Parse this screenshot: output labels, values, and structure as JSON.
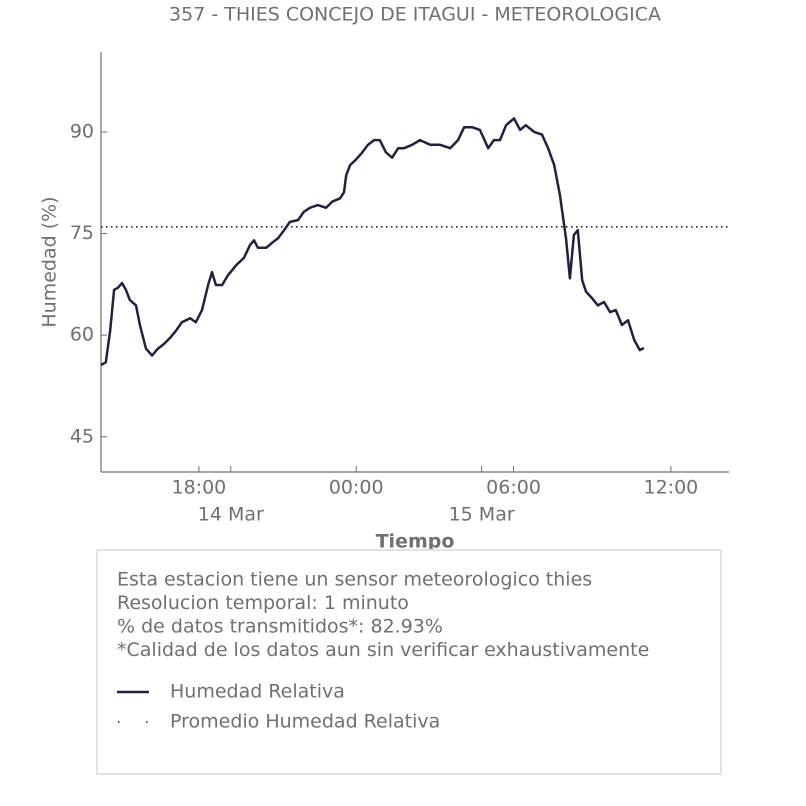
{
  "chart_data": {
    "type": "line",
    "title": "357 - THIES CONCEJO DE ITAGUI - METEOROLOGICA",
    "xlabel": "Tiempo",
    "ylabel": "Humedad (%)",
    "ylim": [
      39.8,
      101.8
    ],
    "yticks": [
      45,
      60,
      75,
      90
    ],
    "xlim": [
      "14 Mar 14:16",
      "15 Mar 14:13"
    ],
    "xticks": [
      {
        "value": "14 Mar 18:00",
        "label": "18:00"
      },
      {
        "value": "15 Mar 00:00",
        "label": "00:00"
      },
      {
        "value": "15 Mar 06:00",
        "label": "06:00"
      },
      {
        "value": "15 Mar 12:00",
        "label": "12:00"
      }
    ],
    "xdateticks": [
      {
        "value": "14 Mar 19:13",
        "label": "14 Mar"
      },
      {
        "value": "15 Mar 04:47",
        "label": "15 Mar"
      }
    ],
    "x": [
      "14 Mar 14:16",
      "14 Mar 14:27",
      "14 Mar 14:37",
      "14 Mar 14:46",
      "14 Mar 14:55",
      "14 Mar 15:04",
      "14 Mar 15:13",
      "14 Mar 15:22",
      "14 Mar 15:36",
      "14 Mar 15:45",
      "14 Mar 15:59",
      "14 Mar 16:13",
      "14 Mar 16:26",
      "14 Mar 16:40",
      "14 Mar 16:54",
      "14 Mar 17:08",
      "14 Mar 17:21",
      "14 Mar 17:40",
      "14 Mar 17:53",
      "14 Mar 18:07",
      "14 Mar 18:21",
      "14 Mar 18:30",
      "14 Mar 18:39",
      "14 Mar 18:53",
      "14 Mar 19:07",
      "14 Mar 19:25",
      "14 Mar 19:43",
      "14 Mar 19:57",
      "14 Mar 20:06",
      "14 Mar 20:15",
      "14 Mar 20:34",
      "14 Mar 20:47",
      "14 Mar 21:01",
      "14 Mar 21:15",
      "14 Mar 21:28",
      "14 Mar 21:47",
      "14 Mar 22:00",
      "14 Mar 22:14",
      "14 Mar 22:32",
      "14 Mar 22:51",
      "14 Mar 23:05",
      "14 Mar 23:23",
      "14 Mar 23:32",
      "14 Mar 23:37",
      "14 Mar 23:46",
      "14 Mar 23:59",
      "15 Mar 00:13",
      "15 Mar 00:27",
      "15 Mar 00:41",
      "15 Mar 00:54",
      "15 Mar 01:08",
      "15 Mar 01:22",
      "15 Mar 01:36",
      "15 Mar 01:49",
      "15 Mar 02:08",
      "15 Mar 02:26",
      "15 Mar 02:49",
      "15 Mar 03:12",
      "15 Mar 03:35",
      "15 Mar 03:53",
      "15 Mar 04:07",
      "15 Mar 04:25",
      "15 Mar 04:43",
      "15 Mar 05:02",
      "15 Mar 05:15",
      "15 Mar 05:29",
      "15 Mar 05:43",
      "15 Mar 06:01",
      "15 Mar 06:15",
      "15 Mar 06:28",
      "15 Mar 06:47",
      "15 Mar 07:05",
      "15 Mar 07:19",
      "15 Mar 07:33",
      "15 Mar 07:46",
      "15 Mar 08:00",
      "15 Mar 08:09",
      "15 Mar 08:18",
      "15 Mar 08:27",
      "15 Mar 08:37",
      "15 Mar 08:46",
      "15 Mar 08:59",
      "15 Mar 09:13",
      "15 Mar 09:27",
      "15 Mar 09:41",
      "15 Mar 09:54",
      "15 Mar 10:08",
      "15 Mar 10:22",
      "15 Mar 10:36",
      "15 Mar 10:49",
      "15 Mar 10:58"
    ],
    "series": [
      {
        "name": "Humedad Relativa",
        "color": "#22223f",
        "values": [
          55.6,
          56,
          60.7,
          66.7,
          67,
          67.7,
          66.7,
          65.2,
          64.4,
          61.5,
          58,
          57,
          58,
          58.7,
          59.6,
          60.7,
          61.9,
          62.5,
          61.9,
          63.7,
          67.4,
          69.3,
          67.4,
          67.4,
          68.9,
          70.3,
          71.4,
          73.3,
          74,
          72.9,
          72.9,
          73.6,
          74.3,
          75.5,
          76.7,
          77,
          78.2,
          78.8,
          79.2,
          78.8,
          79.7,
          80.2,
          81.1,
          83.6,
          85.1,
          85.9,
          86.9,
          88.1,
          88.8,
          88.8,
          87,
          86.2,
          87.6,
          87.6,
          88.1,
          88.8,
          88.1,
          88.1,
          87.6,
          88.8,
          90.7,
          90.7,
          90.3,
          87.6,
          88.8,
          88.8,
          91,
          92,
          90.3,
          91,
          90,
          89.6,
          87.6,
          85.1,
          80.7,
          74.3,
          68.4,
          74.8,
          75.5,
          68.1,
          66.4,
          65.5,
          64.4,
          64.9,
          63.4,
          63.7,
          61.5,
          62.2,
          59.3,
          57.8,
          58.1
        ]
      }
    ],
    "reference_lines": [
      {
        "name": "Promedio Humedad Relativa",
        "value": 76.0,
        "color": "#22223f",
        "style": "dotted"
      }
    ],
    "annotations": [
      "Esta estacion tiene un sensor meteorologico thies",
      "Resolucion temporal: 1 minuto",
      "% de datos transmitidos*: 82.93%",
      "*Calidad de los datos aun sin verificar exhaustivamente"
    ]
  }
}
